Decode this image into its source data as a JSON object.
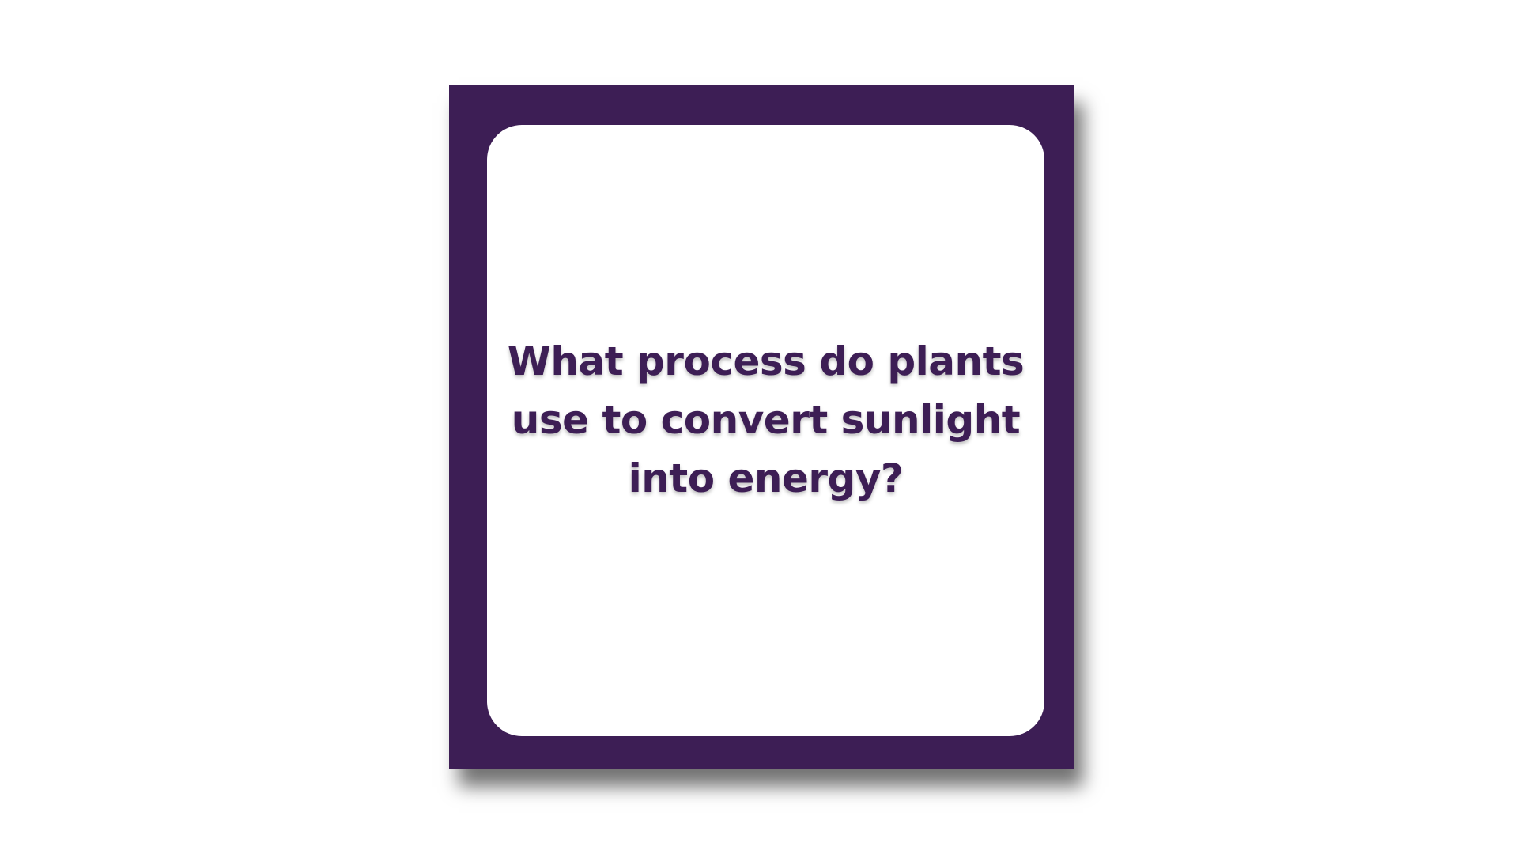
{
  "colors": {
    "card_frame": "#3d1e55",
    "card_face": "#ffffff",
    "question_text": "#3d1e55",
    "page_background": "#ffffff"
  },
  "flashcard": {
    "question": "What process do plants use to convert sunlight into energy?"
  }
}
